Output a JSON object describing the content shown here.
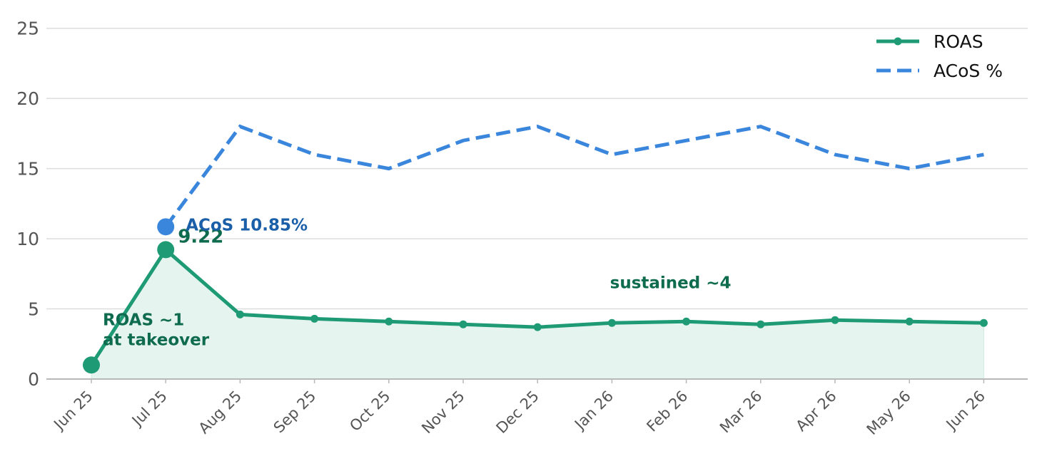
{
  "chart_data": {
    "type": "line",
    "categories": [
      "Jun 25",
      "Jul 25",
      "Aug 25",
      "Sep 25",
      "Oct 25",
      "Nov 25",
      "Dec 25",
      "Jan 26",
      "Feb 26",
      "Mar 26",
      "Apr 26",
      "May 26",
      "Jun 26"
    ],
    "series": [
      {
        "name": "ROAS",
        "values": [
          1.0,
          9.22,
          4.6,
          4.3,
          4.1,
          3.9,
          3.7,
          4.0,
          4.1,
          3.9,
          4.2,
          4.1,
          4.0
        ],
        "color": "#1e9b74",
        "style": "solid-with-markers",
        "area_fill": "#e5f4ee"
      },
      {
        "name": "ACoS %",
        "values": [
          null,
          10.85,
          18.0,
          16.0,
          15.0,
          17.0,
          18.0,
          16.0,
          17.0,
          18.0,
          16.0,
          15.0,
          16.0
        ],
        "color": "#3a86dc",
        "style": "dashed"
      }
    ],
    "ylim": [
      0,
      26
    ],
    "yticks": [
      "0",
      "5",
      "10",
      "15",
      "20",
      "25"
    ],
    "grid": true,
    "legend_position": "top-right",
    "annotations": [
      {
        "lines": [
          "9.22"
        ],
        "color": "#0f6b4e",
        "anchor_series": 0,
        "anchor_index": 1
      },
      {
        "lines": [
          "ACoS 10.85%"
        ],
        "color": "#1a5fa8",
        "anchor_series": 1,
        "anchor_index": 1
      },
      {
        "lines": [
          "ROAS ~1",
          "at takeover"
        ],
        "color": "#0f6b4e",
        "anchor_series": 0,
        "anchor_index": 0
      },
      {
        "lines": [
          "sustained ~4"
        ],
        "color": "#0f6b4e",
        "anchor_series": 0,
        "anchor_index": 8
      }
    ]
  }
}
